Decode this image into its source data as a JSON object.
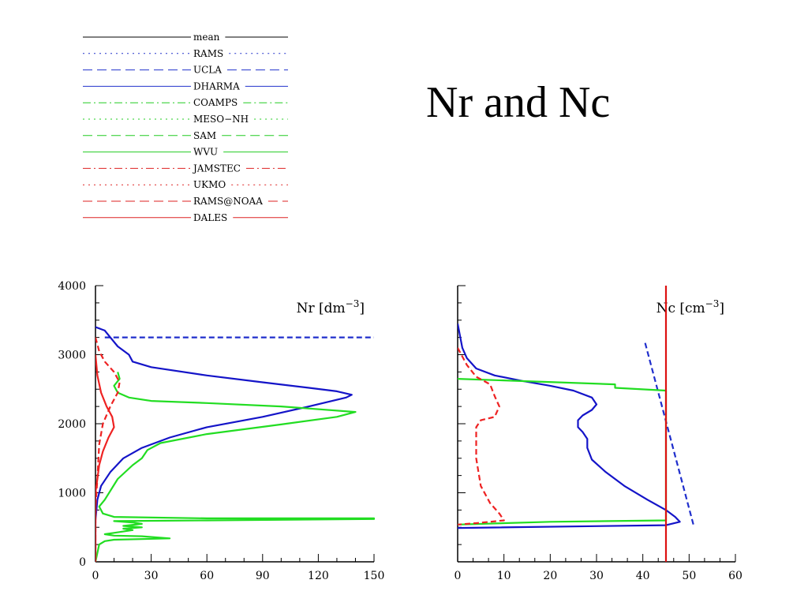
{
  "page": {
    "title": "Nr and Nc"
  },
  "legend": {
    "entries": [
      {
        "name": "mean",
        "color": "#000000",
        "dash": "solid"
      },
      {
        "name": "RAMS",
        "color": "#2233cc",
        "dash": "dot"
      },
      {
        "name": "UCLA",
        "color": "#2233cc",
        "dash": "dash"
      },
      {
        "name": "DHARMA",
        "color": "#2233cc",
        "dash": "solid"
      },
      {
        "name": "COAMPS",
        "color": "#22cc22",
        "dash": "dashdot"
      },
      {
        "name": "MESO−NH",
        "color": "#22cc22",
        "dash": "dot"
      },
      {
        "name": "SAM",
        "color": "#22cc22",
        "dash": "dash"
      },
      {
        "name": "WVU",
        "color": "#22cc22",
        "dash": "solid"
      },
      {
        "name": "JAMSTEC",
        "color": "#dd2222",
        "dash": "dashdot"
      },
      {
        "name": "UKMO",
        "color": "#dd2222",
        "dash": "dot"
      },
      {
        "name": "RAMS@NOAA",
        "color": "#dd2222",
        "dash": "dash"
      },
      {
        "name": "DALES",
        "color": "#dd2222",
        "dash": "solid"
      }
    ]
  },
  "chart_data": [
    {
      "type": "line",
      "panel": "left",
      "label": "Nr [dm⁻³]",
      "label_base": "Nr [dm",
      "label_exp": "−3",
      "label_close": "]",
      "xlim": [
        0,
        150
      ],
      "ylim": [
        0,
        4000
      ],
      "xticks": [
        0,
        30,
        60,
        90,
        120,
        150
      ],
      "yticks": [
        0,
        1000,
        2000,
        3000,
        4000
      ],
      "series": [
        {
          "name": "UCLA",
          "color": "#1f2ecc",
          "dash": "dash",
          "points": [
            [
              5,
              3250
            ],
            [
              90,
              3250
            ],
            [
              150,
              3250
            ]
          ]
        },
        {
          "name": "DHARMA",
          "color": "#1414c8",
          "dash": "solid",
          "points": [
            [
              0,
              3400
            ],
            [
              5,
              3350
            ],
            [
              8,
              3250
            ],
            [
              12,
              3120
            ],
            [
              18,
              3000
            ],
            [
              20,
              2900
            ],
            [
              30,
              2820
            ],
            [
              60,
              2700
            ],
            [
              90,
              2600
            ],
            [
              115,
              2520
            ],
            [
              130,
              2470
            ],
            [
              138,
              2420
            ],
            [
              135,
              2380
            ],
            [
              115,
              2250
            ],
            [
              90,
              2100
            ],
            [
              60,
              1950
            ],
            [
              40,
              1800
            ],
            [
              25,
              1650
            ],
            [
              15,
              1500
            ],
            [
              8,
              1300
            ],
            [
              3,
              1100
            ],
            [
              1,
              900
            ],
            [
              0,
              600
            ],
            [
              0,
              0
            ]
          ]
        },
        {
          "name": "WVU",
          "color": "#22dd22",
          "dash": "solid",
          "points": [
            [
              12,
              2750
            ],
            [
              13,
              2650
            ],
            [
              10,
              2550
            ],
            [
              12,
              2450
            ],
            [
              18,
              2380
            ],
            [
              30,
              2330
            ],
            [
              60,
              2300
            ],
            [
              100,
              2250
            ],
            [
              140,
              2170
            ],
            [
              130,
              2100
            ],
            [
              100,
              1990
            ],
            [
              60,
              1850
            ],
            [
              35,
              1720
            ],
            [
              28,
              1620
            ],
            [
              25,
              1500
            ],
            [
              20,
              1400
            ],
            [
              12,
              1200
            ],
            [
              5,
              900
            ],
            [
              2,
              800
            ],
            [
              4,
              700
            ],
            [
              10,
              650
            ],
            [
              60,
              630
            ],
            [
              150,
              630
            ],
            [
              150,
              620
            ],
            [
              60,
              600
            ],
            [
              10,
              590
            ],
            [
              20,
              570
            ],
            [
              25,
              550
            ],
            [
              15,
              520
            ],
            [
              25,
              500
            ],
            [
              15,
              480
            ],
            [
              20,
              460
            ],
            [
              10,
              420
            ],
            [
              5,
              400
            ],
            [
              10,
              380
            ],
            [
              25,
              370
            ],
            [
              40,
              340
            ],
            [
              10,
              320
            ],
            [
              5,
              300
            ],
            [
              2,
              250
            ],
            [
              0,
              0
            ]
          ]
        },
        {
          "name": "RAMS@NOAA",
          "color": "#ee2222",
          "dash": "dash",
          "points": [
            [
              0,
              3250
            ],
            [
              2,
              3050
            ],
            [
              5,
              2900
            ],
            [
              10,
              2750
            ],
            [
              13,
              2600
            ],
            [
              12,
              2450
            ],
            [
              8,
              2250
            ],
            [
              4,
              2000
            ],
            [
              2,
              1700
            ],
            [
              1,
              1200
            ],
            [
              0,
              800
            ],
            [
              0,
              0
            ]
          ]
        },
        {
          "name": "DALES",
          "color": "#ee2222",
          "dash": "solid",
          "points": [
            [
              0,
              3000
            ],
            [
              1,
              2700
            ],
            [
              3,
              2450
            ],
            [
              6,
              2250
            ],
            [
              9,
              2100
            ],
            [
              10,
              1950
            ],
            [
              7,
              1800
            ],
            [
              4,
              1600
            ],
            [
              2,
              1400
            ],
            [
              1,
              1200
            ],
            [
              0,
              1000
            ],
            [
              0,
              0
            ]
          ]
        }
      ]
    },
    {
      "type": "line",
      "panel": "right",
      "label": "Nc [cm⁻³]",
      "label_base": "Nc [cm",
      "label_exp": "−3",
      "label_close": "]",
      "xlim": [
        0,
        60
      ],
      "ylim": [
        0,
        4000
      ],
      "xticks": [
        0,
        10,
        20,
        30,
        40,
        50,
        60
      ],
      "yticks": [
        0,
        1000,
        2000,
        3000,
        4000
      ],
      "series": [
        {
          "name": "UCLA",
          "color": "#1f2ecc",
          "dash": "dash",
          "points": [
            [
              40.5,
              3170
            ],
            [
              51,
              520
            ]
          ]
        },
        {
          "name": "DHARMA",
          "color": "#1414c8",
          "dash": "solid",
          "points": [
            [
              0,
              3450
            ],
            [
              1,
              3100
            ],
            [
              2,
              2950
            ],
            [
              4,
              2800
            ],
            [
              8,
              2700
            ],
            [
              14,
              2620
            ],
            [
              20,
              2550
            ],
            [
              25,
              2480
            ],
            [
              29,
              2380
            ],
            [
              30,
              2280
            ],
            [
              29,
              2200
            ],
            [
              27,
              2120
            ],
            [
              26,
              2050
            ],
            [
              26,
              1950
            ],
            [
              27,
              1880
            ],
            [
              28,
              1780
            ],
            [
              28,
              1650
            ],
            [
              29,
              1480
            ],
            [
              32,
              1300
            ],
            [
              36,
              1100
            ],
            [
              41,
              900
            ],
            [
              45,
              750
            ],
            [
              47,
              650
            ],
            [
              48,
              580
            ],
            [
              45,
              530
            ],
            [
              0,
              490
            ]
          ]
        },
        {
          "name": "WVU",
          "color": "#22dd22",
          "dash": "solid",
          "points": [
            [
              0,
              2650
            ],
            [
              34,
              2570
            ],
            [
              34,
              2520
            ],
            [
              45,
              2480
            ],
            [
              45,
              600
            ],
            [
              20,
              580
            ],
            [
              0,
              540
            ]
          ]
        },
        {
          "name": "RAMS@NOAA",
          "color": "#ee2222",
          "dash": "dash",
          "points": [
            [
              0,
              3100
            ],
            [
              2,
              2850
            ],
            [
              4,
              2680
            ],
            [
              7,
              2570
            ],
            [
              8,
              2400
            ],
            [
              9,
              2250
            ],
            [
              8,
              2100
            ],
            [
              5,
              2050
            ],
            [
              4,
              1950
            ],
            [
              4,
              1500
            ],
            [
              5,
              1100
            ],
            [
              7,
              850
            ],
            [
              9,
              700
            ],
            [
              10,
              600
            ],
            [
              4,
              560
            ],
            [
              0,
              540
            ]
          ]
        },
        {
          "name": "DALES",
          "color": "#dd1111",
          "dash": "solid",
          "points": [
            [
              45,
              4000
            ],
            [
              45,
              0
            ]
          ]
        }
      ]
    }
  ]
}
